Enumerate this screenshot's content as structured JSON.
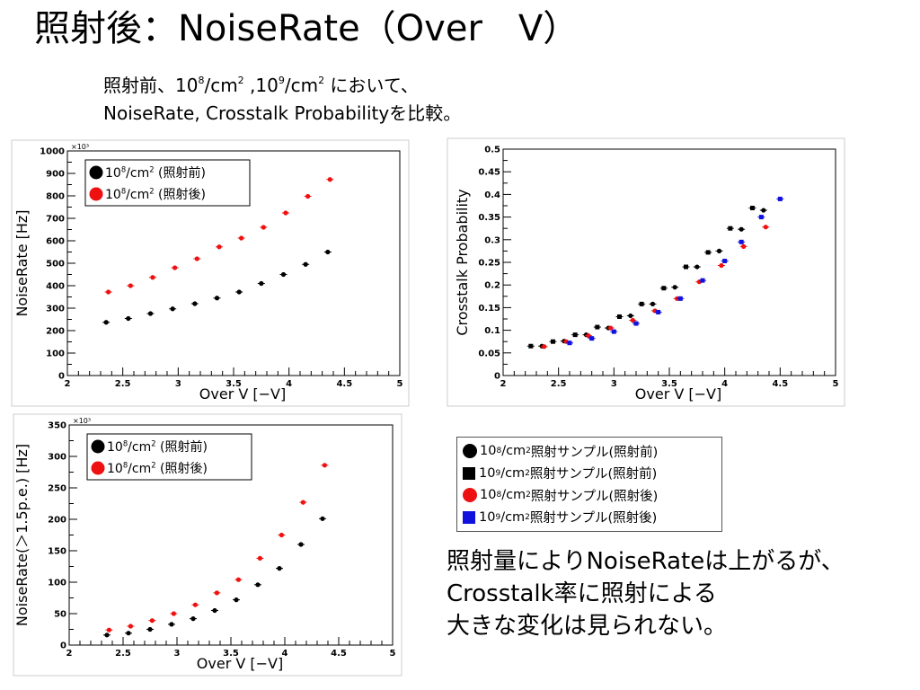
{
  "slide": {
    "title": "照射後：NoiseRate（Over　V）",
    "subtitle_line1": [
      "照射前、10",
      "8",
      "/cm",
      "2",
      " ,10",
      "9",
      "/cm",
      "2",
      " において、"
    ],
    "subtitle_line2": "NoiseRate, Crosstalk Probabilityを比較。",
    "conclusion": [
      "照射量によりNoiseRateは上がるが、",
      "Crosstalk率に照射による",
      "大きな変化は見られない。"
    ]
  },
  "legend": {
    "items": [
      {
        "marker": "circle",
        "color": "#000000",
        "text": [
          "10",
          "8",
          "/cm",
          "2",
          " 照射サンプル(照射前)"
        ]
      },
      {
        "marker": "square",
        "color": "#000000",
        "text": [
          "10",
          "9",
          "/cm",
          "2",
          " 照射サンプル(照射前)"
        ]
      },
      {
        "marker": "circle",
        "color": "#ee1111",
        "text": [
          "10",
          "8",
          "/cm",
          "2",
          " 照射サンプル(照射後)"
        ]
      },
      {
        "marker": "square",
        "color": "#1111dd",
        "text": [
          "10",
          "9",
          "/cm",
          "2",
          " 照射サンプル(照射後)"
        ]
      }
    ]
  },
  "chart_data": [
    {
      "type": "scatter",
      "xlabel": "Over V [−V]",
      "ylabel": "NoiseRate [Hz]",
      "y_multiplier": "×10³",
      "xlim": [
        2,
        5
      ],
      "ylim": [
        0,
        1000
      ],
      "xticks": [
        2,
        2.5,
        3,
        3.5,
        4,
        4.5,
        5
      ],
      "yticks": [
        0,
        100,
        200,
        300,
        400,
        500,
        600,
        700,
        800,
        900,
        1000
      ],
      "legend": [
        {
          "label": [
            "10",
            "8",
            "/cm",
            "2",
            " (照射前)"
          ],
          "color": "#000000"
        },
        {
          "label": [
            "10",
            "8",
            "/cm",
            "2",
            " (照射後)"
          ],
          "color": "#ee1111"
        }
      ],
      "series": [
        {
          "color": "#000000",
          "marker": "circle",
          "x": [
            2.35,
            2.55,
            2.75,
            2.95,
            3.15,
            3.35,
            3.55,
            3.75,
            3.95,
            4.15,
            4.35
          ],
          "y": [
            237,
            254,
            276,
            297,
            320,
            345,
            372,
            410,
            450,
            495,
            550
          ]
        },
        {
          "color": "#ee1111",
          "marker": "circle",
          "x": [
            2.37,
            2.57,
            2.77,
            2.97,
            3.17,
            3.37,
            3.57,
            3.77,
            3.97,
            4.17,
            4.37
          ],
          "y": [
            372,
            400,
            437,
            480,
            520,
            573,
            612,
            660,
            724,
            798,
            873
          ]
        }
      ]
    },
    {
      "type": "scatter",
      "xlabel": "Over V [−V]",
      "ylabel": "Crosstalk Probability",
      "xlim": [
        2,
        5
      ],
      "ylim": [
        0,
        0.5
      ],
      "xticks": [
        2,
        2.5,
        3,
        3.5,
        4,
        4.5,
        5
      ],
      "yticks": [
        0,
        0.05,
        0.1,
        0.15,
        0.2,
        0.25,
        0.3,
        0.35,
        0.4,
        0.45,
        0.5
      ],
      "series": [
        {
          "color": "#000000",
          "marker": "square",
          "x": [
            2.25,
            2.45,
            2.65,
            2.85,
            3.05,
            3.25,
            3.45,
            3.65,
            3.85,
            4.05,
            4.25
          ],
          "y": [
            0.065,
            0.075,
            0.09,
            0.107,
            0.13,
            0.158,
            0.193,
            0.24,
            0.272,
            0.325,
            0.37
          ]
        },
        {
          "color": "#000000",
          "marker": "circle",
          "x": [
            2.35,
            2.55,
            2.75,
            2.95,
            3.15,
            3.35,
            3.55,
            3.75,
            3.95,
            4.15,
            4.35
          ],
          "y": [
            0.065,
            0.076,
            0.09,
            0.105,
            0.132,
            0.158,
            0.195,
            0.24,
            0.275,
            0.323,
            0.365
          ]
        },
        {
          "color": "#ee1111",
          "marker": "circle",
          "x": [
            2.37,
            2.57,
            2.77,
            2.97,
            3.17,
            3.37,
            3.57,
            3.77,
            3.97,
            4.17,
            4.37
          ],
          "y": [
            0.064,
            0.075,
            0.088,
            0.105,
            0.122,
            0.143,
            0.17,
            0.207,
            0.243,
            0.285,
            0.328
          ]
        },
        {
          "color": "#1111dd",
          "marker": "square",
          "x": [
            2.6,
            2.8,
            3.0,
            3.2,
            3.4,
            3.6,
            3.8,
            4.0,
            4.15,
            4.33,
            4.5
          ]
        },
        {
          "color": "#1111dd",
          "marker": "square",
          "x": [
            2.6,
            2.8,
            3.0,
            3.2,
            3.4,
            3.6,
            3.8,
            4.0,
            4.15,
            4.33,
            4.5
          ],
          "y": [
            0.072,
            0.082,
            0.097,
            0.115,
            0.14,
            0.17,
            0.21,
            0.253,
            0.295,
            0.35,
            0.39
          ]
        }
      ]
    },
    {
      "type": "scatter",
      "xlabel": "Over V [−V]",
      "ylabel": "NoiseRate(＞1.5p.e.) [Hz]",
      "y_multiplier": "×10³",
      "xlim": [
        2,
        5
      ],
      "ylim": [
        0,
        350
      ],
      "xticks": [
        2,
        2.5,
        3,
        3.5,
        4,
        4.5,
        5
      ],
      "yticks": [
        0,
        50,
        100,
        150,
        200,
        250,
        300,
        350
      ],
      "legend": [
        {
          "label": [
            "10",
            "8",
            "/cm",
            "2",
            " (照射前)"
          ],
          "color": "#000000"
        },
        {
          "label": [
            "10",
            "8",
            "/cm",
            "2",
            " (照射後)"
          ],
          "color": "#ee1111"
        }
      ],
      "series": [
        {
          "color": "#000000",
          "marker": "circle",
          "x": [
            2.35,
            2.55,
            2.75,
            2.95,
            3.15,
            3.35,
            3.55,
            3.75,
            3.95,
            4.15,
            4.35
          ],
          "y": [
            16,
            19,
            25,
            33,
            42,
            55,
            72,
            96,
            122,
            160,
            201
          ]
        },
        {
          "color": "#ee1111",
          "marker": "circle",
          "x": [
            2.37,
            2.57,
            2.77,
            2.97,
            3.17,
            3.37,
            3.57,
            3.77,
            3.97,
            4.17,
            4.37
          ],
          "y": [
            24,
            30,
            39,
            50,
            64,
            83,
            104,
            138,
            175,
            227,
            286
          ]
        }
      ]
    }
  ]
}
